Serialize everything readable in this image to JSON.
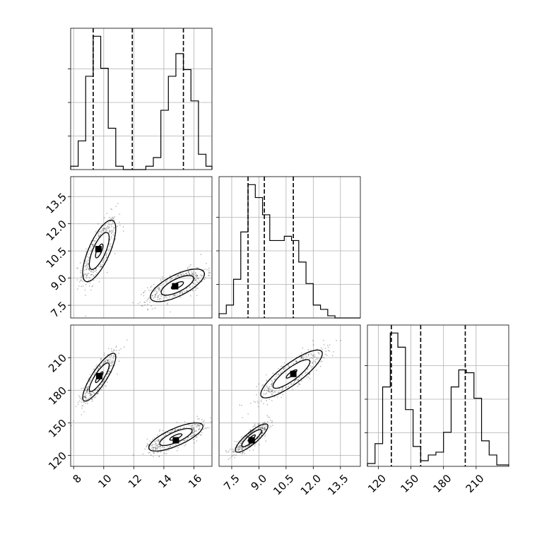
{
  "chart_data": {
    "type": "corner",
    "grid": true,
    "parameters": [
      {
        "range": [
          7.8,
          17.2
        ],
        "ticks": [
          8,
          10,
          12,
          14,
          16
        ],
        "tick_labels": [
          "8",
          "10",
          "12",
          "14",
          "16"
        ],
        "quantiles": [
          9.3,
          11.9,
          15.3
        ],
        "histogram": {
          "edges": [
            7.8,
            8.3,
            8.8,
            9.3,
            9.8,
            10.3,
            10.8,
            11.3,
            11.8,
            12.3,
            12.8,
            13.3,
            13.8,
            14.3,
            14.8,
            15.3,
            15.8,
            16.3,
            16.8,
            17.2
          ],
          "counts": [
            0.5,
            4.3,
            14.0,
            20.0,
            15.2,
            6.2,
            0.5,
            0,
            0,
            0,
            0.5,
            1.8,
            8.9,
            14.0,
            17.4,
            15.0,
            10.3,
            2.3,
            0.5
          ]
        }
      },
      {
        "range": [
          6.8,
          14.6
        ],
        "ticks": [
          7.5,
          9.0,
          10.5,
          12.0,
          13.5
        ],
        "tick_labels": [
          "7.5",
          "9.0",
          "10.5",
          "12.0",
          "13.5"
        ],
        "quantiles": [
          8.4,
          9.3,
          10.9
        ],
        "histogram": {
          "edges": [
            6.8,
            7.2,
            7.6,
            8.0,
            8.4,
            8.8,
            9.2,
            9.6,
            10.0,
            10.4,
            10.8,
            11.2,
            11.6,
            12.0,
            12.4,
            12.8,
            13.2,
            14.6
          ],
          "counts": [
            1,
            3,
            9,
            20,
            31,
            28,
            24,
            18,
            18,
            19,
            18,
            13,
            8,
            3,
            2,
            0.5,
            0
          ]
        }
      },
      {
        "range": [
          110,
          240
        ],
        "ticks": [
          120,
          150,
          180,
          210
        ],
        "tick_labels": [
          "120",
          "150",
          "180",
          "210"
        ],
        "quantiles": [
          132,
          159,
          200
        ],
        "histogram": {
          "edges": [
            110,
            117,
            124,
            131,
            138,
            145,
            152,
            159,
            166,
            173,
            180,
            187,
            194,
            201,
            208,
            215,
            222,
            229,
            240
          ],
          "counts": [
            1,
            8,
            28,
            47,
            42,
            20,
            7,
            2,
            4,
            5,
            12,
            28,
            34,
            33,
            24,
            9,
            4,
            0.5
          ]
        }
      }
    ],
    "pairs": [
      {
        "x_param": 0,
        "y_param": 1,
        "clusters": [
          {
            "center": [
              9.7,
              10.5
            ],
            "sd": [
              0.55,
              0.85
            ],
            "rho": 0.72,
            "levels": [
              0.45,
              1.2,
              2.0
            ],
            "mode": [
              9.65,
              10.6
            ]
          },
          {
            "center": [
              14.9,
              8.6
            ],
            "sd": [
              0.9,
              0.45
            ],
            "rho": 0.7,
            "levels": [
              0.45,
              1.2,
              2.0
            ],
            "mode": [
              14.75,
              8.55
            ]
          }
        ]
      },
      {
        "x_param": 0,
        "y_param": 2,
        "clusters": [
          {
            "center": [
              9.7,
              192
            ],
            "sd": [
              0.55,
              11
            ],
            "rho": 0.85,
            "levels": [
              0.45,
              1.2,
              2.0
            ],
            "mode": [
              9.7,
              193
            ]
          },
          {
            "center": [
              14.8,
              137
            ],
            "sd": [
              0.9,
              6.5
            ],
            "rho": 0.75,
            "levels": [
              0.45,
              1.2,
              2.0
            ],
            "mode": [
              14.8,
              134
            ]
          }
        ]
      },
      {
        "x_param": 1,
        "y_param": 2,
        "clusters": [
          {
            "center": [
              10.8,
              195
            ],
            "sd": [
              0.85,
              11
            ],
            "rho": 0.85,
            "levels": [
              0.35,
              1.2,
              2.0
            ],
            "mode": [
              10.9,
              195
            ]
          },
          {
            "center": [
              8.6,
              136
            ],
            "sd": [
              0.45,
              6.5
            ],
            "rho": 0.85,
            "levels": [
              0.45,
              1.2,
              2.0
            ],
            "mode": [
              8.6,
              134
            ]
          }
        ]
      }
    ]
  }
}
